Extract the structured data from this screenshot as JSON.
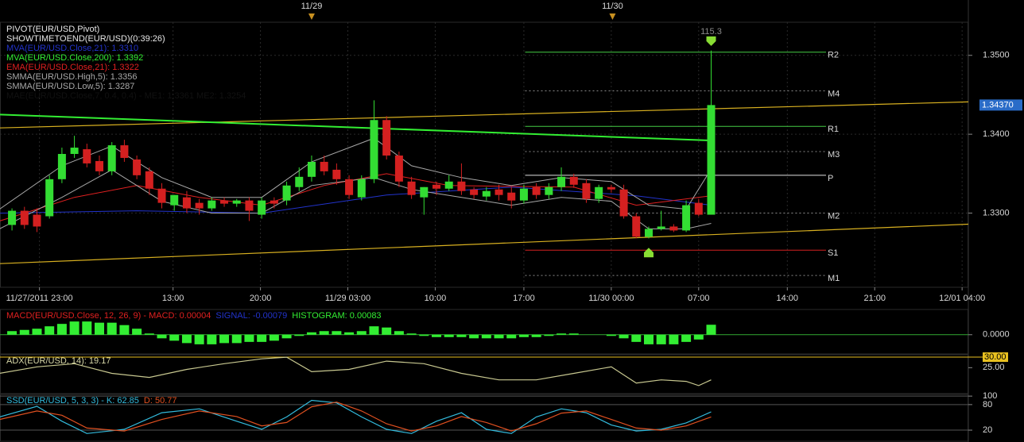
{
  "chart_data": [
    {
      "type": "candlestick",
      "xlim": [
        -0.96,
        76.6
      ],
      "xticks": [
        {
          "value": 2.2,
          "label": "11/27/2011 23:00"
        },
        {
          "value": 12.9,
          "label": "13:00"
        },
        {
          "value": 19.9,
          "label": "20:00"
        },
        {
          "value": 26.9,
          "label": "11/29 03:00"
        },
        {
          "value": 33.9,
          "label": "10:00"
        },
        {
          "value": 41,
          "label": "17:00"
        },
        {
          "value": 48,
          "label": "11/30 00:00"
        },
        {
          "value": 55,
          "label": "07:00"
        },
        {
          "value": 62.1,
          "label": "14:00"
        },
        {
          "value": 69.1,
          "label": "21:00"
        },
        {
          "value": 76.1,
          "label": "12/01 04:00"
        }
      ],
      "date_markers": [
        {
          "value": 24,
          "label": "11/29"
        },
        {
          "value": 48.1,
          "label": "11/30"
        }
      ],
      "ylim": [
        1.3206,
        1.3542
      ],
      "yticks": [
        {
          "value": 1.33,
          "label": "1.3300"
        },
        {
          "value": 1.34,
          "label": "1.3400"
        },
        {
          "value": 1.35,
          "label": "1.3500"
        }
      ],
      "grid": true,
      "up_color": "#33dd33",
      "down_color": "#d42020",
      "ohlc": [
        [
          1.3285,
          1.3306,
          1.3278,
          1.3303
        ],
        [
          1.3303,
          1.3308,
          1.328,
          1.3285
        ],
        [
          1.3298,
          1.3306,
          1.3276,
          1.3283
        ],
        [
          1.3296,
          1.3348,
          1.3293,
          1.3343
        ],
        [
          1.3343,
          1.3383,
          1.3338,
          1.3375
        ],
        [
          1.3375,
          1.3398,
          1.337,
          1.3383
        ],
        [
          1.3381,
          1.3388,
          1.3358,
          1.3363
        ],
        [
          1.3366,
          1.3373,
          1.3348,
          1.3353
        ],
        [
          1.3353,
          1.339,
          1.3348,
          1.3386
        ],
        [
          1.3386,
          1.3393,
          1.3365,
          1.337
        ],
        [
          1.3368,
          1.3373,
          1.3343,
          1.3348
        ],
        [
          1.3353,
          1.3358,
          1.3323,
          1.3331
        ],
        [
          1.3331,
          1.3338,
          1.3306,
          1.3313
        ],
        [
          1.331,
          1.3323,
          1.3303,
          1.3323
        ],
        [
          1.332,
          1.3328,
          1.33,
          1.3306
        ],
        [
          1.3313,
          1.3318,
          1.3298,
          1.3306
        ],
        [
          1.3306,
          1.332,
          1.3303,
          1.3316
        ],
        [
          1.3316,
          1.332,
          1.3308,
          1.3312
        ],
        [
          1.3312,
          1.3318,
          1.3308,
          1.3316
        ],
        [
          1.3316,
          1.332,
          1.329,
          1.3303
        ],
        [
          1.3298,
          1.332,
          1.3293,
          1.3316
        ],
        [
          1.3316,
          1.332,
          1.3306,
          1.3312
        ],
        [
          1.3316,
          1.334,
          1.331,
          1.3335
        ],
        [
          1.3333,
          1.3358,
          1.3328,
          1.3346
        ],
        [
          1.3346,
          1.3373,
          1.334,
          1.3365
        ],
        [
          1.3365,
          1.3373,
          1.3348,
          1.3353
        ],
        [
          1.3355,
          1.3363,
          1.3336,
          1.3343
        ],
        [
          1.3343,
          1.3348,
          1.3318,
          1.3323
        ],
        [
          1.332,
          1.3348,
          1.3316,
          1.3343
        ],
        [
          1.3343,
          1.3443,
          1.3338,
          1.3418
        ],
        [
          1.3418,
          1.3423,
          1.3368,
          1.3373
        ],
        [
          1.3373,
          1.3378,
          1.3333,
          1.334
        ],
        [
          1.334,
          1.3346,
          1.3318,
          1.3323
        ],
        [
          1.332,
          1.3333,
          1.3298,
          1.3333
        ],
        [
          1.3336,
          1.334,
          1.3323,
          1.3331
        ],
        [
          1.3331,
          1.3348,
          1.3328,
          1.334
        ],
        [
          1.334,
          1.3363,
          1.3323,
          1.3328
        ],
        [
          1.333,
          1.3333,
          1.3318,
          1.3323
        ],
        [
          1.3321,
          1.3333,
          1.3316,
          1.3328
        ],
        [
          1.333,
          1.3336,
          1.3316,
          1.3323
        ],
        [
          1.3326,
          1.3333,
          1.3306,
          1.3316
        ],
        [
          1.3316,
          1.3336,
          1.3312,
          1.3331
        ],
        [
          1.3333,
          1.3338,
          1.3318,
          1.3323
        ],
        [
          1.3323,
          1.3338,
          1.3318,
          1.3333
        ],
        [
          1.3333,
          1.3358,
          1.3328,
          1.3346
        ],
        [
          1.3346,
          1.335,
          1.3332,
          1.3336
        ],
        [
          1.3338,
          1.3343,
          1.3313,
          1.3318
        ],
        [
          1.3318,
          1.3336,
          1.3313,
          1.3333
        ],
        [
          1.3333,
          1.3336,
          1.3326,
          1.333
        ],
        [
          1.333,
          1.3336,
          1.3293,
          1.3296
        ],
        [
          1.3296,
          1.33,
          1.3268,
          1.327
        ],
        [
          1.327,
          1.3283,
          1.3268,
          1.328
        ],
        [
          1.328,
          1.3303,
          1.3278,
          1.3283
        ],
        [
          1.3283,
          1.3286,
          1.3276,
          1.3278
        ],
        [
          1.3278,
          1.3316,
          1.3276,
          1.331
        ],
        [
          1.3313,
          1.3318,
          1.3296,
          1.3298
        ],
        [
          1.3298,
          1.3506,
          1.3298,
          1.3437
        ]
      ],
      "series": [
        {
          "name": "PIVOT(EUR/USD,Pivot)",
          "color": "#e8e8e8"
        },
        {
          "name": "SHOWTIMETOEND(EUR/USD)(0:39:26)",
          "color": "#e8e8e8"
        },
        {
          "name": "MVA(EUR/USD.Close,21): 1.3310",
          "color": "#2233cc",
          "x": [
            -1,
            10,
            20,
            30,
            40,
            50,
            56
          ],
          "values": [
            1.33,
            1.3303,
            1.33,
            1.3323,
            1.3333,
            1.3322,
            1.331
          ]
        },
        {
          "name": "MVA(EUR/USD.Close,200): 1.3392",
          "color": "#33ee33",
          "width": 2,
          "x": [
            -1,
            56
          ],
          "values": [
            1.3425,
            1.3392
          ]
        },
        {
          "name": "EMA(EUR/USD.Close,21): 1.3322",
          "color": "#e02020",
          "x": [
            -1,
            5,
            10,
            15,
            20,
            25,
            30,
            35,
            45,
            50,
            56
          ],
          "values": [
            1.329,
            1.332,
            1.3335,
            1.332,
            1.331,
            1.3335,
            1.335,
            1.3335,
            1.3333,
            1.331,
            1.3322
          ]
        },
        {
          "name": "SMMA(EUR/USD.High,5): 1.3356",
          "color": "#a8a8a8",
          "x": [
            -1,
            4,
            8,
            12,
            16,
            20,
            24,
            29,
            32,
            36,
            40,
            44,
            48,
            51,
            54,
            56
          ],
          "values": [
            1.3305,
            1.336,
            1.3385,
            1.3345,
            1.332,
            1.332,
            1.3365,
            1.3395,
            1.336,
            1.3345,
            1.3335,
            1.3345,
            1.334,
            1.331,
            1.3305,
            1.3356
          ]
        },
        {
          "name": "SMMA(EUR/USD.Low,5): 1.3287",
          "color": "#a8a8a8",
          "x": [
            -1,
            4,
            8,
            12,
            16,
            20,
            24,
            29,
            32,
            36,
            40,
            44,
            48,
            51,
            54,
            56
          ],
          "values": [
            1.328,
            1.332,
            1.3355,
            1.3315,
            1.33,
            1.33,
            1.3335,
            1.3345,
            1.333,
            1.332,
            1.331,
            1.332,
            1.3315,
            1.328,
            1.328,
            1.3287
          ]
        },
        {
          "name": "MAE(EUR/USD.Close,7, 0.4, 0.4) - ME1: 1.3361  ME2: 1.3254",
          "color": "#111111"
        }
      ],
      "trend_lines": [
        {
          "color": "#d8b020",
          "x": [
            -0.96,
            76.6
          ],
          "values": [
            1.3408,
            1.3441
          ]
        },
        {
          "color": "#d8b020",
          "x": [
            -0.96,
            76.6
          ],
          "values": [
            1.3236,
            1.3286
          ]
        }
      ],
      "levels_x": [
        41.1,
        65.2
      ],
      "levels": [
        {
          "label": "R2",
          "value": 1.3504,
          "color": "#44cc44",
          "dashed": false
        },
        {
          "label": "M4",
          "value": 1.3455,
          "color": "#888888",
          "dashed": true
        },
        {
          "label": "R1",
          "value": 1.341,
          "color": "#44cc44",
          "dashed": false
        },
        {
          "label": "M3",
          "value": 1.3378,
          "color": "#888888",
          "dashed": true
        },
        {
          "label": "P",
          "value": 1.3348,
          "color": "#e0e0e0",
          "dashed": false
        },
        {
          "label": "M2",
          "value": 1.33,
          "color": "#888888",
          "dashed": true
        },
        {
          "label": "S1",
          "value": 1.3253,
          "color": "#d42020",
          "dashed": false
        },
        {
          "label": "M1",
          "value": 1.3221,
          "color": "#888888",
          "dashed": true
        }
      ],
      "markers": [
        {
          "x": 56,
          "y": 1.3512,
          "dir": "down",
          "color": "#88dd33"
        },
        {
          "x": 51,
          "y": 1.3256,
          "dir": "up",
          "color": "#88dd33"
        }
      ],
      "annotations": [
        {
          "text": "115.3",
          "x": 56
        }
      ],
      "last_price": {
        "value": 1.3437,
        "label": "1.34370",
        "color": "#2a6cc8"
      }
    },
    {
      "type": "bar",
      "title_parts": [
        {
          "text": "MACD(EUR/USD.Close, 12, 26, 9) -  MACD: 0.00004",
          "color": "#e02020"
        },
        {
          "text": "SIGNAL: -0.00079",
          "color": "#2233cc"
        },
        {
          "text": "HISTOGRAM: 0.00083",
          "color": "#33ee33"
        }
      ],
      "color": "#33ee33",
      "ylim": [
        -0.0016,
        0.0021
      ],
      "yticks": [
        {
          "value": 0,
          "label": "0.0000"
        }
      ],
      "values": [
        0.0003,
        0.0004,
        0.0005,
        0.0007,
        0.0009,
        0.0011,
        0.0011,
        0.001,
        0.001,
        0.0008,
        0.0005,
        0.0001,
        -0.0003,
        -0.0005,
        -0.0007,
        -0.0008,
        -0.0008,
        -0.0007,
        -0.0007,
        -0.0006,
        -0.0006,
        -0.0005,
        -0.0003,
        -0.0001,
        0.0002,
        0.0003,
        0.0003,
        0.0002,
        0.0003,
        0.0007,
        0.0006,
        0.0003,
        0.0001,
        -0.0001,
        -0.0002,
        -0.0002,
        -0.0002,
        -0.0003,
        -0.0003,
        -0.0003,
        -0.0003,
        -0.0002,
        -0.0002,
        -0.0001,
        0.0001,
        0.0001,
        0,
        0,
        -0.0001,
        -0.0003,
        -0.0006,
        -0.0008,
        -0.0008,
        -0.0008,
        -0.0006,
        -0.0004,
        0.00083
      ]
    },
    {
      "type": "line",
      "title_parts": [
        {
          "text": "ADX(EUR/USD, 14): 19.17",
          "color": "#d8d8a8"
        }
      ],
      "ylim": [
        12.7,
        31.15
      ],
      "yticks": [
        {
          "value": 25,
          "label": "25.00"
        }
      ],
      "levels": [
        {
          "value": 30,
          "label": "30.00",
          "color": "#e8c020"
        }
      ],
      "series": [
        {
          "color": "#c8c890",
          "x": [
            -1,
            2,
            5,
            8,
            11,
            14,
            17,
            20,
            22,
            24,
            27,
            30,
            33,
            36,
            39,
            42,
            45,
            48,
            50,
            52,
            54,
            55,
            56
          ],
          "values": [
            22.3,
            25.4,
            26.9,
            22.3,
            20.4,
            24.2,
            26.9,
            29.2,
            30.0,
            23.1,
            24.2,
            28.1,
            26.9,
            22.3,
            19.2,
            19.2,
            22.3,
            25.4,
            17.7,
            19.2,
            18.5,
            16.5,
            19.2
          ]
        }
      ]
    },
    {
      "type": "line",
      "title_parts": [
        {
          "text": "SSD(EUR/USD, 5, 3, 3) -  K: 62.85",
          "color": "#33bbdd"
        },
        {
          "text": "D: 50.77",
          "color": "#e05020"
        }
      ],
      "ylim": [
        -6,
        104
      ],
      "yticks": [
        100,
        80,
        20
      ],
      "grid": true,
      "series": [
        {
          "color": "#33bbdd",
          "x": [
            -1,
            2,
            4,
            6,
            9,
            12,
            15,
            18,
            20,
            22,
            24,
            26,
            28,
            30,
            32,
            34,
            36,
            38,
            40,
            42,
            44,
            46,
            48,
            50,
            52,
            54,
            56
          ],
          "values": [
            51,
            76,
            41,
            12,
            22,
            61,
            70,
            41,
            22,
            51,
            90,
            84,
            51,
            22,
            12,
            41,
            61,
            22,
            12,
            51,
            70,
            61,
            32,
            18,
            22,
            37,
            63
          ]
        },
        {
          "color": "#e05020",
          "x": [
            -1,
            2,
            4,
            6,
            9,
            12,
            15,
            18,
            20,
            22,
            24,
            26,
            28,
            30,
            32,
            34,
            36,
            38,
            40,
            42,
            44,
            46,
            48,
            50,
            52,
            54,
            56
          ],
          "values": [
            45,
            65,
            55,
            25,
            18,
            45,
            65,
            52,
            30,
            38,
            75,
            86,
            65,
            35,
            18,
            30,
            52,
            38,
            18,
            35,
            60,
            65,
            45,
            25,
            20,
            30,
            51
          ]
        }
      ]
    }
  ]
}
